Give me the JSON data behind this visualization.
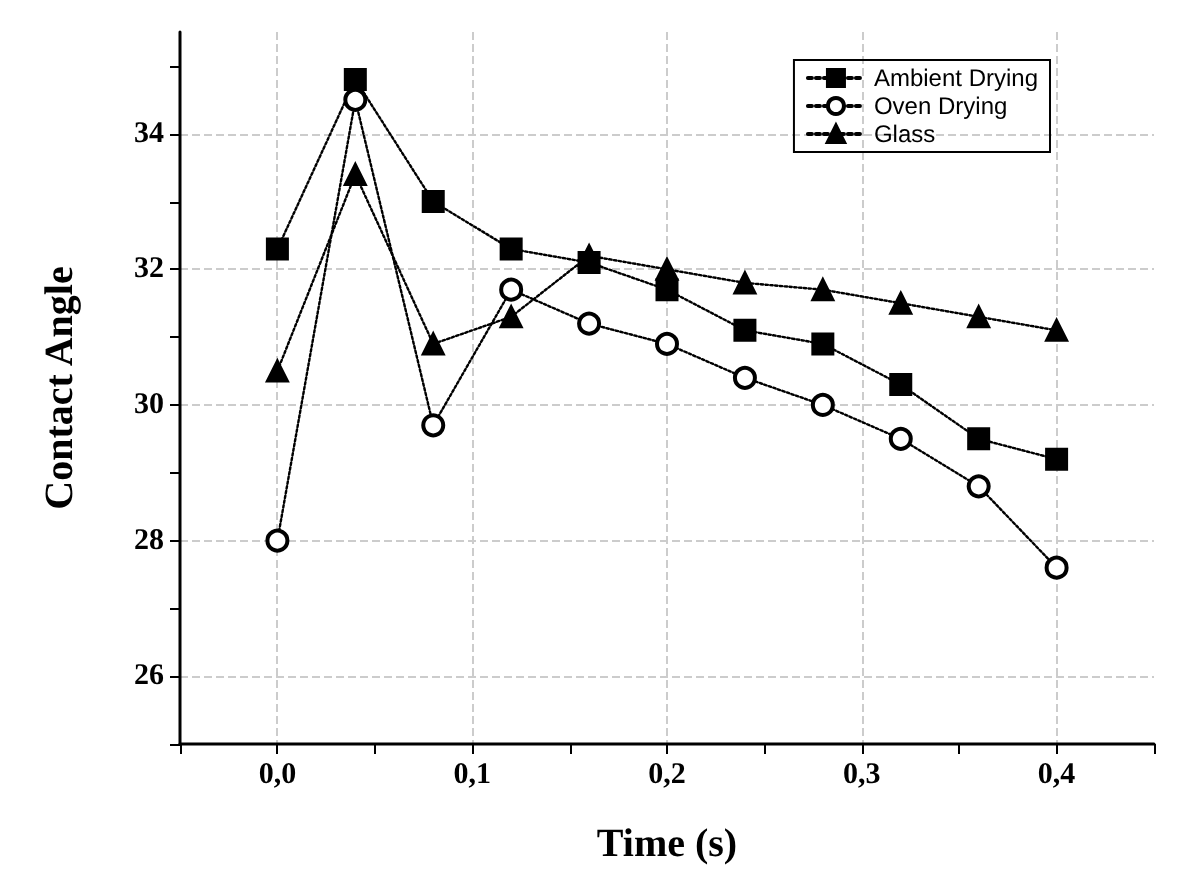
{
  "chart_data": {
    "type": "line",
    "xlabel": "Time (s)",
    "ylabel": "Contact Angle",
    "x": [
      0,
      0.04,
      0.08,
      0.12,
      0.16,
      0.2,
      0.24,
      0.28,
      0.32,
      0.36,
      0.4
    ],
    "series": [
      {
        "name": "Ambient Drying",
        "color": "#000000",
        "marker": "square",
        "values": [
          32.3,
          34.8,
          33.0,
          32.3,
          32.1,
          31.7,
          31.1,
          30.9,
          30.3,
          29.5,
          29.2
        ]
      },
      {
        "name": "Oven Drying",
        "color": "#000000",
        "marker": "circle",
        "values": [
          28.0,
          34.5,
          29.7,
          31.7,
          31.2,
          30.9,
          30.4,
          30.0,
          29.5,
          28.8,
          27.6
        ]
      },
      {
        "name": "Glass",
        "color": "#000000",
        "marker": "triangle",
        "values": [
          30.5,
          33.4,
          30.9,
          31.3,
          32.2,
          32.0,
          31.8,
          31.7,
          31.5,
          31.3,
          31.1
        ]
      }
    ],
    "xlim": [
      -0.05,
      0.45
    ],
    "xticks": [
      {
        "value": -0.05,
        "label": null
      },
      {
        "value": 0,
        "label": "0,0"
      },
      {
        "value": 0.05,
        "label": null
      },
      {
        "value": 0.1,
        "label": "0,1"
      },
      {
        "value": 0.15,
        "label": null
      },
      {
        "value": 0.2,
        "label": "0,2"
      },
      {
        "value": 0.25,
        "label": null
      },
      {
        "value": 0.3,
        "label": "0,3"
      },
      {
        "value": 0.35,
        "label": null
      },
      {
        "value": 0.4,
        "label": "0,4"
      },
      {
        "value": 0.45,
        "label": null
      }
    ],
    "ylim": [
      25,
      35.5
    ],
    "yticks": [
      {
        "value": 25,
        "label": null
      },
      26,
      {
        "value": 27,
        "label": null
      },
      28,
      {
        "value": 29,
        "label": null
      },
      30,
      {
        "value": 31,
        "label": null
      },
      32,
      {
        "value": 33,
        "label": null
      },
      34,
      {
        "value": 35,
        "label": null
      }
    ],
    "grid": true,
    "legend": "top right",
    "line_style": "dotted"
  }
}
